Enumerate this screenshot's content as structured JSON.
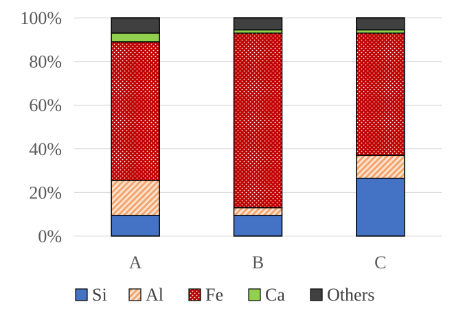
{
  "chart_data": {
    "type": "bar",
    "stacked": true,
    "normalized": true,
    "categories": [
      "A",
      "B",
      "C"
    ],
    "series": [
      {
        "name": "Si",
        "values": [
          9.5,
          9.5,
          26.5
        ],
        "color": "#4472c4",
        "pattern": "solid"
      },
      {
        "name": "Al",
        "values": [
          16.0,
          3.5,
          10.5
        ],
        "color": "#f4b183",
        "pattern": "diagonal-hatch-orange"
      },
      {
        "name": "Fe",
        "values": [
          63.5,
          80.0,
          56.0
        ],
        "color": "#c00000",
        "pattern": "dotted-red"
      },
      {
        "name": "Ca",
        "values": [
          4.0,
          1.5,
          1.5
        ],
        "color": "#92d050",
        "pattern": "solid"
      },
      {
        "name": "Others",
        "values": [
          7.0,
          5.5,
          5.5
        ],
        "color": "#404040",
        "pattern": "solid"
      }
    ],
    "yticks": [
      "0%",
      "20%",
      "40%",
      "60%",
      "80%",
      "100%"
    ],
    "ylim": [
      0,
      100
    ],
    "grid": true,
    "legend_position": "bottom",
    "title": "",
    "xlabel": "",
    "ylabel": ""
  }
}
